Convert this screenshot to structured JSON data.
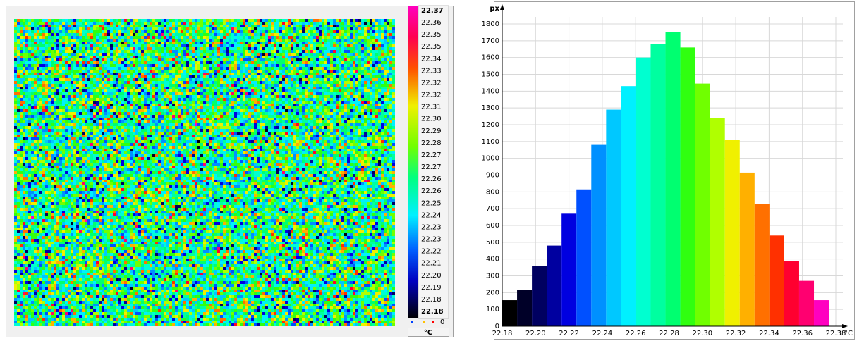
{
  "colorbar": {
    "labels": [
      "22.37",
      "22.36",
      "22.35",
      "22.35",
      "22.34",
      "22.33",
      "22.32",
      "22.32",
      "22.31",
      "22.30",
      "22.29",
      "22.28",
      "22.27",
      "22.27",
      "22.26",
      "22.26",
      "22.25",
      "22.24",
      "22.23",
      "22.23",
      "22.22",
      "22.21",
      "22.20",
      "22.19",
      "22.18",
      "22.18"
    ],
    "count": "0",
    "unit": "°C"
  },
  "chart_data": {
    "type": "histogram",
    "x_label": "°C",
    "y_label": "px",
    "bins": [
      22.18,
      22.1889,
      22.1978,
      22.2067,
      22.2156,
      22.2245,
      22.2334,
      22.2423,
      22.2512,
      22.2601,
      22.269,
      22.2779,
      22.2868,
      22.2957,
      22.3046,
      22.3135,
      22.3224,
      22.3313,
      22.3402,
      22.3491,
      22.358,
      22.3669,
      22.3758
    ],
    "values": [
      155,
      215,
      360,
      480,
      670,
      815,
      1080,
      1290,
      1430,
      1600,
      1680,
      1750,
      1660,
      1445,
      1240,
      1110,
      915,
      730,
      540,
      390,
      270,
      155
    ],
    "colors": [
      "#000000",
      "#000028",
      "#000060",
      "#0000a0",
      "#0000e0",
      "#0050ff",
      "#0090ff",
      "#00c8ff",
      "#00f0ff",
      "#00ffd0",
      "#00ffa0",
      "#00ff70",
      "#30ff10",
      "#70ff00",
      "#b0ff00",
      "#f0f000",
      "#ffb000",
      "#ff7000",
      "#ff3000",
      "#ff0030",
      "#ff0070",
      "#ff00c0"
    ],
    "xlim": [
      22.18,
      22.38
    ],
    "ylim": [
      0,
      1800
    ],
    "xticks": [
      22.18,
      {
        "value": 22.2,
        "label": "22.20"
      },
      22.22,
      22.24,
      22.26,
      22.28,
      {
        "value": 22.3,
        "label": "22.30"
      },
      22.32,
      22.34,
      22.36,
      22.38
    ],
    "yticks": [
      0,
      100,
      200,
      300,
      400,
      500,
      600,
      700,
      800,
      900,
      1000,
      1100,
      1200,
      1300,
      1400,
      1500,
      1600,
      1700,
      1800
    ],
    "grid": true
  }
}
